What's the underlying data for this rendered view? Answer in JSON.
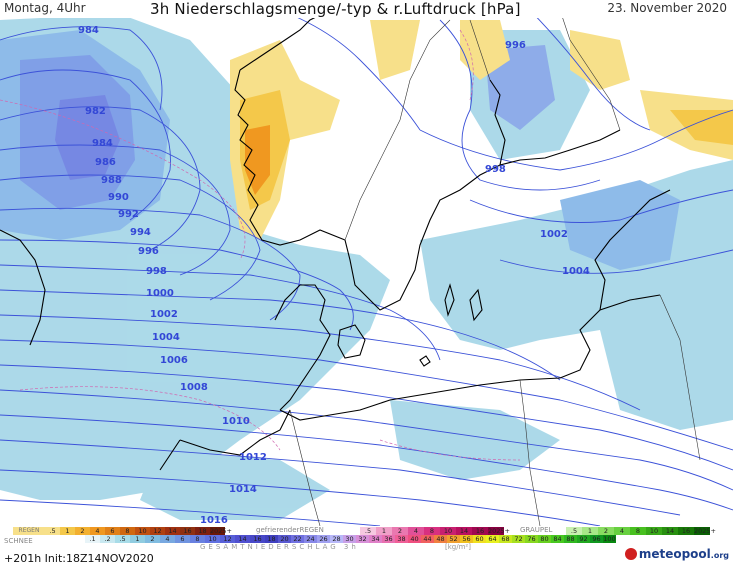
{
  "header": {
    "left": "Montag, 4Uhr",
    "title": "3h Niederschlagsmenge/-typ & r.Luftdruck [hPa]",
    "right": "23. November 2020"
  },
  "isobars": [
    {
      "label": "984",
      "id": "isobar-984"
    },
    {
      "label": "996",
      "id": "isobar-996-north"
    },
    {
      "label": "982",
      "id": "isobar-982"
    },
    {
      "label": "984",
      "id": "isobar-984-b"
    },
    {
      "label": "986",
      "id": "isobar-986"
    },
    {
      "label": "988",
      "id": "isobar-988"
    },
    {
      "label": "990",
      "id": "isobar-990"
    },
    {
      "label": "992",
      "id": "isobar-992"
    },
    {
      "label": "994",
      "id": "isobar-994"
    },
    {
      "label": "996",
      "id": "isobar-996"
    },
    {
      "label": "998",
      "id": "isobar-998"
    },
    {
      "label": "998",
      "id": "isobar-998-east"
    },
    {
      "label": "1000",
      "id": "isobar-1000"
    },
    {
      "label": "1002",
      "id": "isobar-1002"
    },
    {
      "label": "1002",
      "id": "isobar-1002-east"
    },
    {
      "label": "1004",
      "id": "isobar-1004"
    },
    {
      "label": "1004",
      "id": "isobar-1004-east"
    },
    {
      "label": "1006",
      "id": "isobar-1006"
    },
    {
      "label": "1008",
      "id": "isobar-1008"
    },
    {
      "label": "1010",
      "id": "isobar-1010"
    },
    {
      "label": "1012",
      "id": "isobar-1012"
    },
    {
      "label": "1014",
      "id": "isobar-1014"
    },
    {
      "label": "1016",
      "id": "isobar-1016"
    }
  ],
  "legend": {
    "rain_label": "REGEN",
    "rain_values": [
      ".5",
      "1",
      "2",
      "4",
      "6",
      "8",
      "10",
      "12",
      "14",
      "16",
      "18",
      "2025+"
    ],
    "freezing_label": "gefrierenderREGEN",
    "freezing_values": [
      ".5",
      "1",
      "2",
      "4",
      "8",
      "10",
      "14",
      "16",
      "2025+"
    ],
    "graupel_label": "GRAUPEL",
    "graupel_values": [
      ".5",
      "1",
      "2",
      "4",
      "8",
      "10",
      "14",
      "16",
      "2025+"
    ],
    "snow_label": "SCHNEE",
    "snow_values": [
      ".1",
      ".2",
      ".5",
      "1",
      "2",
      "4",
      "6",
      "8",
      "10",
      "12",
      "14",
      "16"
    ],
    "total_values": [
      "18",
      "20",
      "22",
      "24",
      "26",
      "28",
      "30",
      "32",
      "34",
      "36",
      "38",
      "40",
      "44",
      "48",
      "52",
      "56",
      "60",
      "64",
      "68",
      "72",
      "76",
      "80",
      "84",
      "88",
      "92",
      "96",
      "100"
    ],
    "total_label": "GESAMTNIEDERSCHLAG 3h",
    "unit": "[kg/m²]"
  },
  "footer": {
    "run": "+201h  Init:18Z14NOV2020",
    "logo_main": "meteopool",
    "logo_tld": ".org"
  },
  "colors": {
    "rain_scale": [
      "#f7e08a",
      "#f4c84a",
      "#f2b030",
      "#f09820",
      "#e08018",
      "#d06810",
      "#c05010",
      "#b04010",
      "#a03010",
      "#903010",
      "#802010",
      "#6a1808"
    ],
    "freezing_scale": [
      "#f6c8e0",
      "#f0a0c8",
      "#ea78b0",
      "#e05098",
      "#d83080",
      "#c82070",
      "#b81060",
      "#a00850",
      "#880040"
    ],
    "graupel_scale": [
      "#c8f0b0",
      "#a8e888",
      "#88dc60",
      "#68d040",
      "#48c020",
      "#38a818",
      "#289010",
      "#187808",
      "#0a6004"
    ],
    "snow_scale": [
      "#e8f4f8",
      "#c8e8f0",
      "#a8dce8",
      "#90cce0",
      "#80bce0",
      "#78a8e0",
      "#7094e0",
      "#6880e0",
      "#6070e0",
      "#5860d8",
      "#5050d0",
      "#4848c8"
    ],
    "total_scale": [
      "#4040c0",
      "#5858d0",
      "#7070e0",
      "#8888e8",
      "#a0a0f0",
      "#b8b8f8",
      "#c8a0e8",
      "#d890d8",
      "#e080c8",
      "#e870b0",
      "#f06098",
      "#f05080",
      "#f06060",
      "#f08040",
      "#f0a030",
      "#f0c020",
      "#f0e020",
      "#e8f020",
      "#c8e820",
      "#a8e020",
      "#88d820",
      "#68d020",
      "#48c820",
      "#30b820",
      "#20a820",
      "#109820",
      "#088810"
    ]
  }
}
